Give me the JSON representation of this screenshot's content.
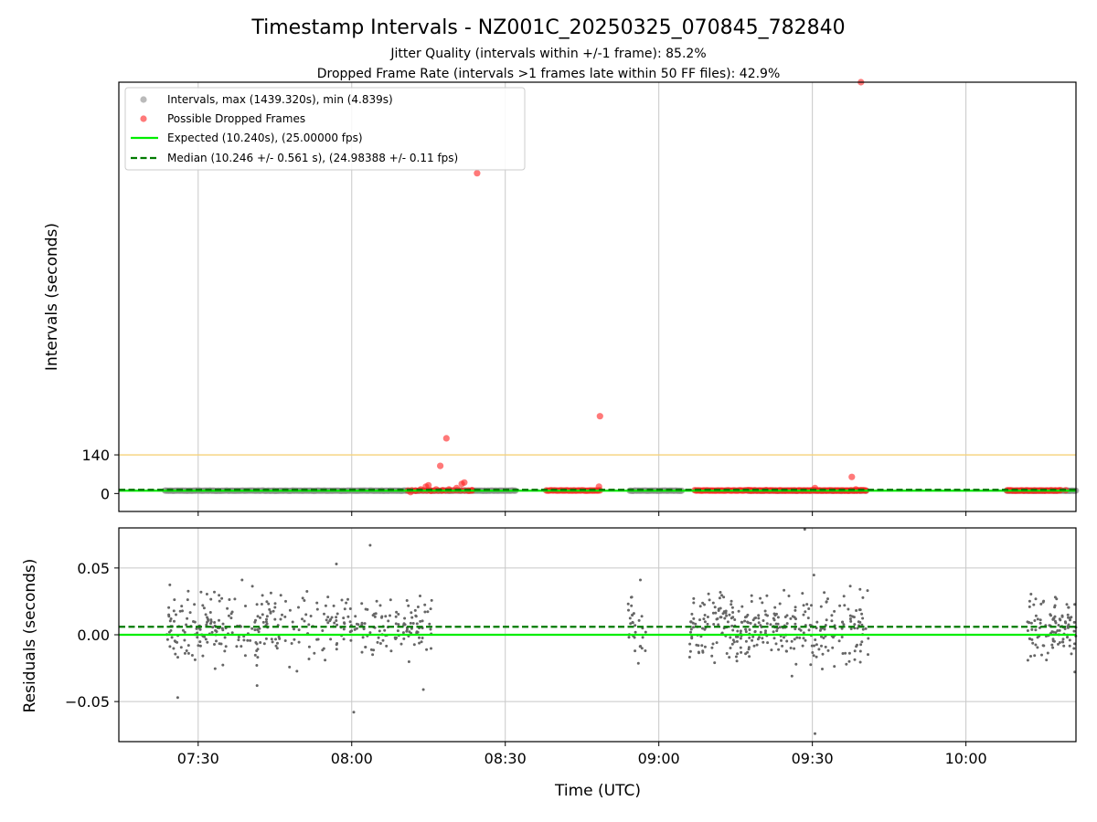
{
  "figure": {
    "title": "Timestamp Intervals - NZ001C_20250325_070845_782840",
    "subtitle_1": "Jitter Quality (intervals within +/-1 frame): 85.2%",
    "subtitle_2": "Dropped Frame Rate (intervals >1 frames late within 50 FF files): 42.9%"
  },
  "colors": {
    "intervals": "#8c8c8c",
    "dropped": "#ff2020",
    "expected": "#00ee00",
    "median": "#007a00",
    "threshold": "#f5d27a",
    "residual_points": "#666666",
    "grid": "#c8c8c8"
  },
  "chart_data": [
    {
      "type": "scatter",
      "panel": "top",
      "ylabel": "Intervals (seconds)",
      "xlabel": "",
      "x_ticks": [
        "07:30",
        "08:00",
        "08:30",
        "09:00",
        "09:30",
        "10:00"
      ],
      "x_tick_minutes": [
        450,
        480,
        510,
        540,
        570,
        600
      ],
      "xlim_minutes": [
        434.5,
        621.5
      ],
      "ylim": [
        -65,
        1490
      ],
      "y_ticks": [
        0,
        140
      ],
      "grid": "vertical",
      "legend_position": "top-left",
      "legend": [
        {
          "label": "Intervals, max (1439.320s), min (4.839s)",
          "kind": "gray-dot"
        },
        {
          "label": "Possible Dropped Frames",
          "kind": "red-dot"
        },
        {
          "label": "Expected (10.240s), (25.00000 fps)",
          "kind": "green-line"
        },
        {
          "label": "Median (10.246 +/- 0.561 s), (24.98388 +/- 0.11 fps)",
          "kind": "dashed-line"
        }
      ],
      "expected_interval": 10.24,
      "median_interval": 10.246,
      "threshold": 140,
      "interval_segments_minutes": [
        [
          443.5,
          512.0
        ],
        [
          534.3,
          544.5
        ],
        [
          557.5,
          580.5
        ],
        [
          608.0,
          621.5
        ]
      ],
      "dropped_frames": [
        {
          "t": 504.5,
          "v": 1160
        },
        {
          "t": 498.5,
          "v": 200
        },
        {
          "t": 497.3,
          "v": 100
        },
        {
          "t": 502.0,
          "v": 40
        },
        {
          "t": 501.5,
          "v": 35
        },
        {
          "t": 500.5,
          "v": 20
        },
        {
          "t": 499.0,
          "v": 15
        },
        {
          "t": 496.5,
          "v": 15
        },
        {
          "t": 495.5,
          "v": 10
        },
        {
          "t": 494.5,
          "v": 25
        },
        {
          "t": 493.5,
          "v": 15
        },
        {
          "t": 492.5,
          "v": 10
        },
        {
          "t": 491.5,
          "v": 5
        },
        {
          "t": 495.0,
          "v": 30
        },
        {
          "t": 497.8,
          "v": 12
        },
        {
          "t": 503.0,
          "v": 10
        },
        {
          "t": 503.5,
          "v": 12
        },
        {
          "t": 528.5,
          "v": 280
        },
        {
          "t": 528.3,
          "v": 25
        },
        {
          "t": 577.7,
          "v": 60
        },
        {
          "t": 579.5,
          "v": 1490
        },
        {
          "t": 570.5,
          "v": 20
        },
        {
          "t": 561.0,
          "v": 12
        },
        {
          "t": 578.5,
          "v": 15
        },
        {
          "t": 619.5,
          "v": 12
        }
      ],
      "dropped_clusters_minutes": [
        {
          "start": 491.0,
          "end": 503.5,
          "count": 18
        },
        {
          "start": 518.0,
          "end": 528.5,
          "count": 40
        },
        {
          "start": 547.0,
          "end": 558.0,
          "count": 45
        },
        {
          "start": 558.0,
          "end": 580.5,
          "count": 90
        },
        {
          "start": 608.0,
          "end": 618.5,
          "count": 40
        }
      ]
    },
    {
      "type": "scatter",
      "panel": "bottom",
      "ylabel": "Residuals (seconds)",
      "xlabel": "Time (UTC)",
      "x_ticks": [
        "07:30",
        "08:00",
        "08:30",
        "09:00",
        "09:30",
        "10:00"
      ],
      "x_tick_minutes": [
        450,
        480,
        510,
        540,
        570,
        600
      ],
      "xlim_minutes": [
        434.5,
        621.5
      ],
      "ylim": [
        -0.08,
        0.08
      ],
      "y_ticks": [
        "0.05",
        "0.00",
        "−0.05"
      ],
      "y_tick_values": [
        0.05,
        0.0,
        -0.05
      ],
      "grid": "both",
      "expected_residual": 0.0,
      "median_residual": 0.006,
      "residual_spread": 0.018,
      "residual_segments_minutes": [
        {
          "start": 443.5,
          "end": 470.0,
          "count": 200
        },
        {
          "start": 470.0,
          "end": 496.0,
          "count": 170
        },
        {
          "start": 534.0,
          "end": 537.5,
          "count": 30
        },
        {
          "start": 546.0,
          "end": 560.0,
          "count": 150
        },
        {
          "start": 560.0,
          "end": 581.0,
          "count": 180
        },
        {
          "start": 612.0,
          "end": 621.5,
          "count": 110
        }
      ],
      "outliers": [
        {
          "t": 483.6,
          "v": 0.067
        },
        {
          "t": 477.0,
          "v": 0.053
        },
        {
          "t": 568.5,
          "v": 0.079
        },
        {
          "t": 570.5,
          "v": -0.074
        },
        {
          "t": 480.4,
          "v": -0.058
        },
        {
          "t": 446.0,
          "v": -0.047
        },
        {
          "t": 566.0,
          "v": -0.031
        },
        {
          "t": 494.0,
          "v": -0.041
        },
        {
          "t": 461.5,
          "v": -0.038
        }
      ]
    }
  ]
}
